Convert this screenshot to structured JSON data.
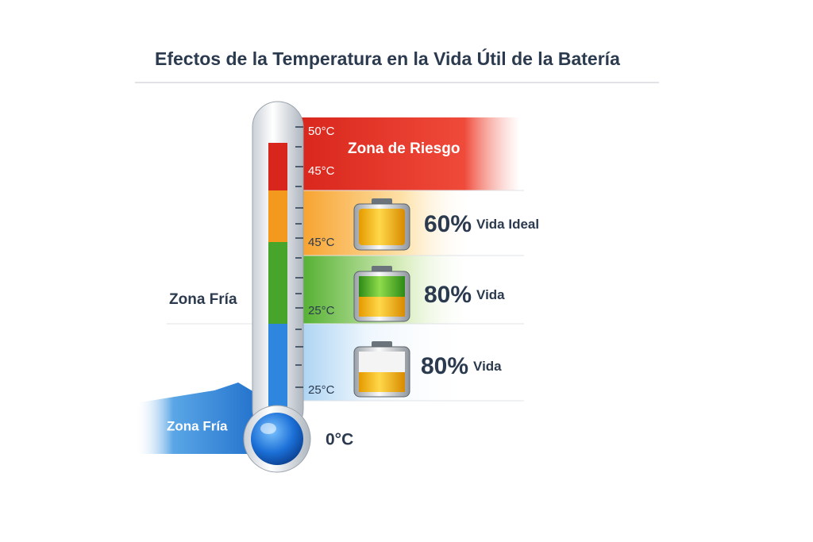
{
  "header": {
    "title": "Efectos de la Temperatura en la Vida Útil de la Batería"
  },
  "thermometer": {
    "ticks": [
      "50°C",
      "45°C",
      "45°C",
      "25°C",
      "25°C",
      "0°C"
    ]
  },
  "zones": [
    {
      "label": "Zona de Riesgo"
    },
    {
      "value": "60%",
      "label": "Vida Ideal"
    },
    {
      "value": "80%",
      "label": "Vida"
    },
    {
      "value": "80%",
      "label": "Vida"
    }
  ],
  "cold_zone": {
    "labels": [
      "Zona Fría",
      "Zona Fría"
    ]
  }
}
